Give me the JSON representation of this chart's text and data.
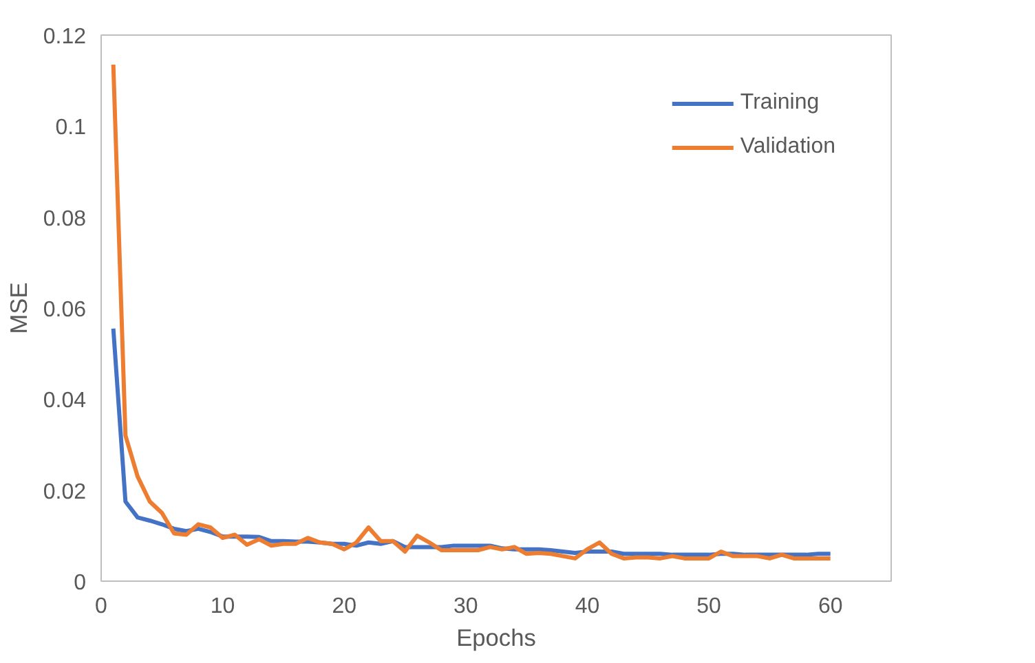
{
  "chart_data": {
    "type": "line",
    "xlabel": "Epochs",
    "ylabel": "MSE",
    "x": [
      1,
      2,
      3,
      4,
      5,
      6,
      7,
      8,
      9,
      10,
      11,
      12,
      13,
      14,
      15,
      16,
      17,
      18,
      19,
      20,
      21,
      22,
      23,
      24,
      25,
      26,
      27,
      28,
      29,
      30,
      31,
      32,
      33,
      34,
      35,
      36,
      37,
      38,
      39,
      40,
      41,
      42,
      43,
      44,
      45,
      46,
      47,
      48,
      49,
      50,
      51,
      52,
      53,
      54,
      55,
      56,
      57,
      58,
      59,
      60
    ],
    "series": [
      {
        "name": "Training",
        "color": "#4472c4",
        "values": [
          0.0555,
          0.0175,
          0.014,
          0.0133,
          0.0125,
          0.0115,
          0.011,
          0.0115,
          0.0108,
          0.0098,
          0.0098,
          0.0098,
          0.0097,
          0.0088,
          0.0088,
          0.0087,
          0.0087,
          0.0085,
          0.0082,
          0.0082,
          0.0078,
          0.0085,
          0.0082,
          0.0088,
          0.0075,
          0.0075,
          0.0075,
          0.0075,
          0.0078,
          0.0078,
          0.0078,
          0.0078,
          0.0072,
          0.007,
          0.007,
          0.007,
          0.0068,
          0.0065,
          0.0062,
          0.0065,
          0.0065,
          0.0065,
          0.006,
          0.006,
          0.006,
          0.006,
          0.0058,
          0.0058,
          0.0058,
          0.0058,
          0.006,
          0.006,
          0.0058,
          0.0058,
          0.0058,
          0.0058,
          0.0058,
          0.0058,
          0.006,
          0.006
        ]
      },
      {
        "name": "Validation",
        "color": "#ed7d31",
        "values": [
          0.1135,
          0.032,
          0.023,
          0.0175,
          0.015,
          0.0105,
          0.0102,
          0.0125,
          0.0118,
          0.0095,
          0.0102,
          0.008,
          0.0092,
          0.0078,
          0.0082,
          0.0082,
          0.0095,
          0.0085,
          0.0082,
          0.007,
          0.0085,
          0.0118,
          0.0088,
          0.0088,
          0.0065,
          0.01,
          0.0085,
          0.0068,
          0.0068,
          0.0068,
          0.0068,
          0.0075,
          0.007,
          0.0075,
          0.006,
          0.0062,
          0.006,
          0.0055,
          0.005,
          0.007,
          0.0085,
          0.006,
          0.005,
          0.0052,
          0.0052,
          0.005,
          0.0055,
          0.005,
          0.005,
          0.005,
          0.0065,
          0.0055,
          0.0055,
          0.0055,
          0.005,
          0.0058,
          0.005,
          0.005,
          0.005,
          0.005
        ]
      }
    ],
    "xlim": [
      0,
      65
    ],
    "xticks": [
      0,
      10,
      20,
      30,
      40,
      50,
      60
    ],
    "ylim": [
      0,
      0.12
    ],
    "yticks": [
      0,
      0.02,
      0.04,
      0.06,
      0.08,
      0.1,
      0.12
    ],
    "grid": false,
    "legend": "top right",
    "marker": "none",
    "line_style": "solid"
  }
}
